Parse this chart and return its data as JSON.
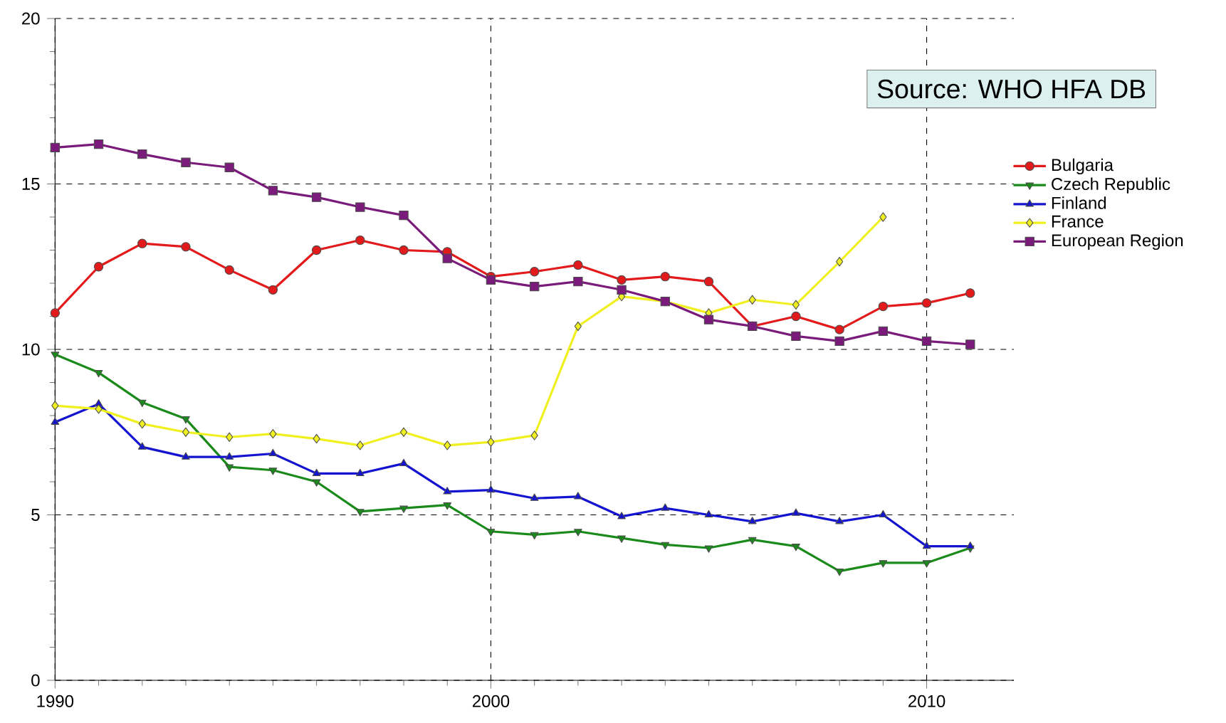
{
  "chart_data": {
    "type": "line",
    "annotations": [
      "Source: WHO HFA DB"
    ],
    "x": [
      1990,
      1991,
      1992,
      1993,
      1994,
      1995,
      1996,
      1997,
      1998,
      1999,
      2000,
      2001,
      2002,
      2003,
      2004,
      2005,
      2006,
      2007,
      2008,
      2009,
      2010,
      2011
    ],
    "xlim": [
      1990,
      2012
    ],
    "xticks": [
      1990,
      2000,
      2010
    ],
    "ylim": [
      0,
      20
    ],
    "yticks": [
      0,
      5,
      10,
      15,
      20
    ],
    "grid": true,
    "legend": "right",
    "series": [
      {
        "name": "Bulgaria",
        "color": "#e31a1c",
        "marker": "circle",
        "values": [
          11.1,
          12.5,
          13.2,
          13.1,
          12.4,
          11.8,
          13.0,
          13.3,
          13.0,
          12.95,
          12.2,
          12.35,
          12.55,
          12.1,
          12.2,
          12.05,
          10.7,
          11.0,
          10.6,
          11.3,
          11.4,
          11.7
        ]
      },
      {
        "name": "Czech Republic",
        "color": "#1a8a1a",
        "marker": "triangle",
        "values": [
          9.85,
          9.3,
          8.4,
          7.9,
          6.45,
          6.35,
          6.0,
          5.1,
          5.2,
          5.3,
          4.5,
          4.4,
          4.5,
          4.3,
          4.1,
          4.0,
          4.25,
          4.05,
          3.3,
          3.55,
          3.55,
          4.0
        ]
      },
      {
        "name": "Finland",
        "color": "#1414d0",
        "marker": "triangle",
        "values": [
          7.8,
          8.35,
          7.05,
          6.75,
          6.75,
          6.85,
          6.25,
          6.25,
          6.55,
          5.7,
          5.75,
          5.5,
          5.55,
          4.95,
          5.2,
          5.0,
          4.8,
          5.05,
          4.8,
          5.0,
          4.05,
          4.05
        ]
      },
      {
        "name": "France",
        "color": "#f0f020",
        "marker": "diamond",
        "values": [
          8.3,
          8.2,
          7.75,
          7.5,
          7.35,
          7.45,
          7.3,
          7.1,
          7.5,
          7.1,
          7.2,
          7.4,
          10.7,
          11.6,
          11.45,
          11.1,
          11.5,
          11.35,
          12.65,
          14.0,
          null,
          null
        ]
      },
      {
        "name": "European Region",
        "color": "#7a1a7a",
        "marker": "square",
        "values": [
          16.1,
          16.2,
          15.9,
          15.65,
          15.5,
          14.8,
          14.6,
          14.3,
          14.05,
          12.75,
          12.1,
          11.9,
          12.05,
          11.8,
          11.45,
          10.9,
          10.7,
          10.4,
          10.25,
          10.55,
          10.25,
          10.15
        ]
      }
    ]
  }
}
